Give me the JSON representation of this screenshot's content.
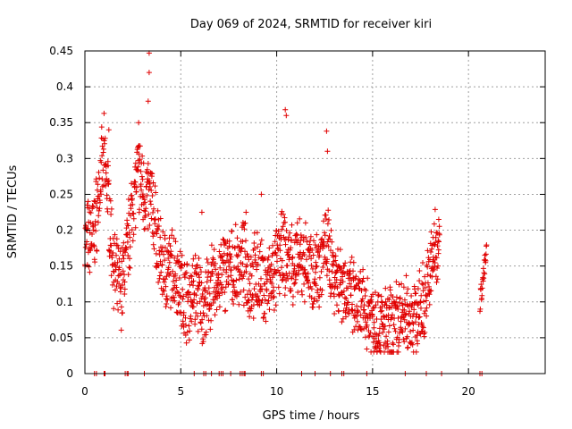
{
  "chart_data": {
    "type": "scatter",
    "title": "Day 069 of 2024, SRMTID for receiver kiri",
    "xlabel": "GPS time / hours",
    "ylabel": "SRMTID / TECUs",
    "xlim": [
      0,
      24
    ],
    "ylim": [
      0,
      0.45
    ],
    "xticks": [
      0,
      5,
      10,
      15,
      20
    ],
    "xtick_labels": [
      "0",
      "5",
      "10",
      "15",
      "20"
    ],
    "yticks": [
      0,
      0.05,
      0.1,
      0.15,
      0.2,
      0.25,
      0.3,
      0.35,
      0.4,
      0.45
    ],
    "ytick_labels": [
      "0",
      "0.05",
      "0.1",
      "0.15",
      "0.2",
      "0.25",
      "0.3",
      "0.35",
      "0.4",
      "0.45"
    ],
    "grid": true,
    "marker": "+",
    "color": "#e00000",
    "series": [
      {
        "name": "SRMTID",
        "profile": [
          [
            0.0,
            0.18
          ],
          [
            0.5,
            0.2
          ],
          [
            0.8,
            0.27
          ],
          [
            1.0,
            0.3
          ],
          [
            1.2,
            0.25
          ],
          [
            1.4,
            0.18
          ],
          [
            1.6,
            0.13
          ],
          [
            1.9,
            0.12
          ],
          [
            2.2,
            0.17
          ],
          [
            2.5,
            0.24
          ],
          [
            2.8,
            0.28
          ],
          [
            3.1,
            0.25
          ],
          [
            3.5,
            0.24
          ],
          [
            3.9,
            0.16
          ],
          [
            4.3,
            0.14
          ],
          [
            4.7,
            0.15
          ],
          [
            5.0,
            0.12
          ],
          [
            5.4,
            0.1
          ],
          [
            5.8,
            0.12
          ],
          [
            6.2,
            0.09
          ],
          [
            6.6,
            0.12
          ],
          [
            7.0,
            0.13
          ],
          [
            7.4,
            0.15
          ],
          [
            7.8,
            0.14
          ],
          [
            8.2,
            0.16
          ],
          [
            8.6,
            0.13
          ],
          [
            9.0,
            0.14
          ],
          [
            9.4,
            0.12
          ],
          [
            9.8,
            0.13
          ],
          [
            10.2,
            0.17
          ],
          [
            10.6,
            0.16
          ],
          [
            11.0,
            0.15
          ],
          [
            11.4,
            0.16
          ],
          [
            11.8,
            0.14
          ],
          [
            12.2,
            0.15
          ],
          [
            12.6,
            0.18
          ],
          [
            13.0,
            0.14
          ],
          [
            13.4,
            0.13
          ],
          [
            13.8,
            0.11
          ],
          [
            14.2,
            0.09
          ],
          [
            14.6,
            0.09
          ],
          [
            15.0,
            0.08
          ],
          [
            15.4,
            0.07
          ],
          [
            15.8,
            0.06
          ],
          [
            16.2,
            0.07
          ],
          [
            16.6,
            0.08
          ],
          [
            17.0,
            0.08
          ],
          [
            17.4,
            0.08
          ],
          [
            17.8,
            0.11
          ],
          [
            18.2,
            0.17
          ],
          [
            18.5,
            0.19
          ]
        ],
        "segments": [
          [
            0.0,
            18.5
          ],
          [
            20.6,
            20.95
          ]
        ],
        "cluster_20_6_to_21": [
          0.1,
          0.17
        ],
        "spikes": [
          {
            "x": 3.35,
            "y": 0.447
          },
          {
            "x": 3.35,
            "y": 0.42
          },
          {
            "x": 3.3,
            "y": 0.38
          },
          {
            "x": 2.8,
            "y": 0.35
          },
          {
            "x": 1.25,
            "y": 0.34
          },
          {
            "x": 10.45,
            "y": 0.368
          },
          {
            "x": 10.5,
            "y": 0.36
          },
          {
            "x": 12.6,
            "y": 0.338
          },
          {
            "x": 12.65,
            "y": 0.31
          },
          {
            "x": 9.2,
            "y": 0.25
          },
          {
            "x": 6.1,
            "y": 0.225
          },
          {
            "x": 8.4,
            "y": 0.225
          },
          {
            "x": 15.8,
            "y": 0.03
          },
          {
            "x": 5.15,
            "y": 0.065
          },
          {
            "x": 18.45,
            "y": 0.215
          }
        ],
        "zero_ticks": [
          0.5,
          0.6,
          1.0,
          1.05,
          2.1,
          2.2,
          2.25,
          3.1,
          5.7,
          6.2,
          6.3,
          6.6,
          7.0,
          7.1,
          7.2,
          7.6,
          8.1,
          8.2,
          8.3,
          8.35,
          9.2,
          9.3,
          11.3,
          12.0,
          12.8,
          13.4,
          13.5,
          14.7,
          16.7,
          17.8,
          18.6,
          20.6,
          20.7
        ]
      }
    ]
  }
}
